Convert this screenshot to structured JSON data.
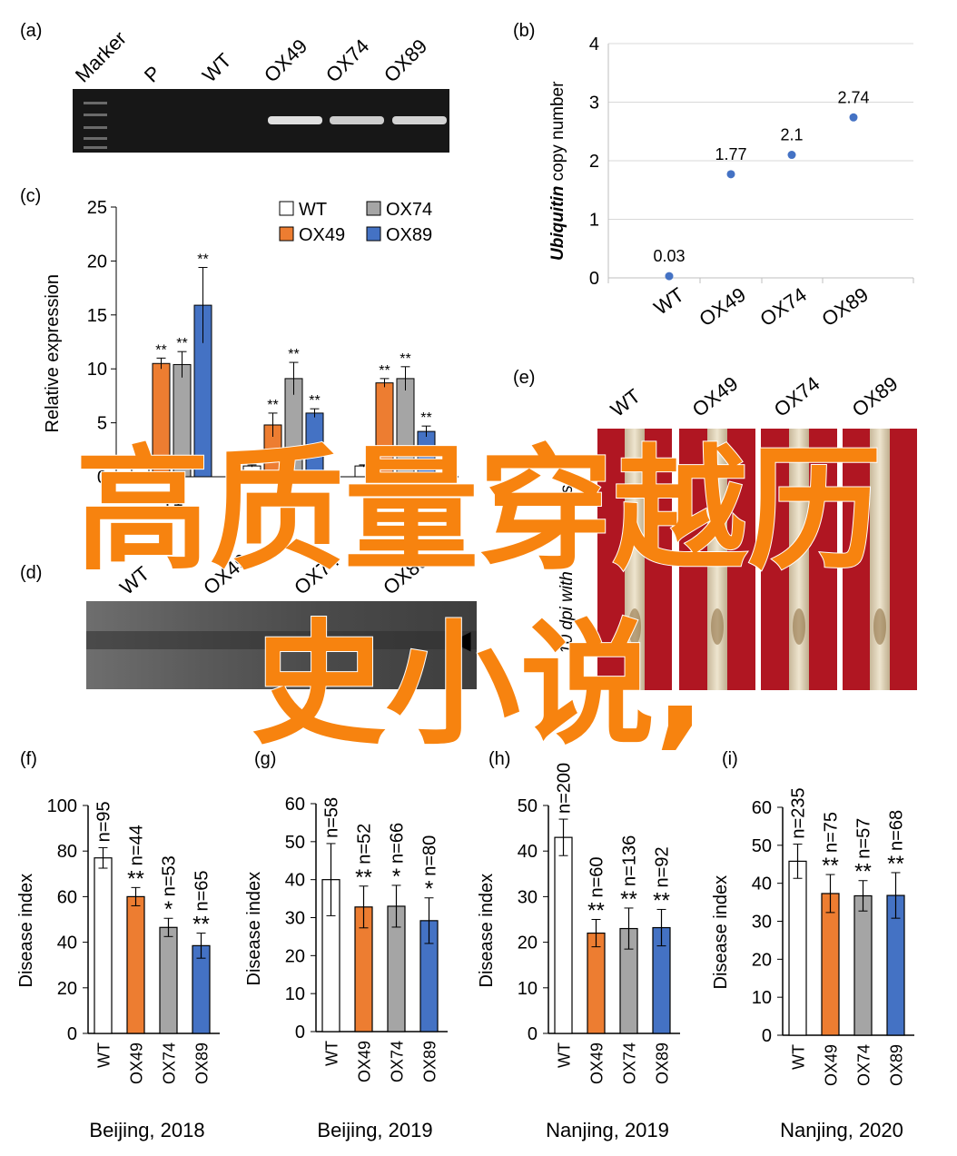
{
  "panels": {
    "a": {
      "label": "(a)",
      "lanes": [
        "Marker",
        "P",
        "WT",
        "OX49",
        "OX74",
        "OX89"
      ],
      "band_intensity": [
        null,
        1.0,
        0.0,
        0.75,
        0.6,
        0.65
      ]
    },
    "b": {
      "label": "(b)",
      "ylabel_italic": "Ubiquitin",
      "ylabel_rest": " copy number",
      "yticks": [
        "0",
        "1",
        "2",
        "3",
        "4"
      ],
      "point_labels": [
        "0.03",
        "1.77",
        "2.1",
        "2.74"
      ],
      "color": "#4472c4"
    },
    "c": {
      "label": "(c)",
      "ylabel": "Relative expression",
      "yticks": [
        "0",
        "5",
        "10",
        "15",
        "20",
        "25"
      ],
      "groups": [
        "T1",
        "T2",
        "T3"
      ],
      "legend": [
        "WT",
        "OX74",
        "OX49",
        "OX89"
      ],
      "sig": "**"
    },
    "d": {
      "label": "(d)",
      "lanes": [
        "WT",
        "OX49",
        "OX74",
        "OX89"
      ],
      "arrow": "◀"
    },
    "e": {
      "label": "(e)",
      "lanes": [
        "WT",
        "OX49",
        "OX74",
        "OX89"
      ],
      "side_text": "10 dpi with C. cerealis"
    },
    "disease": [
      {
        "label": "(f)",
        "caption": "Beijing, 2018",
        "yticks": [
          "0",
          "20",
          "40",
          "60",
          "80",
          "100"
        ],
        "n": [
          "n=95",
          "n=44",
          "n=53",
          "n=65"
        ],
        "sig": [
          "",
          "**",
          "*",
          "**"
        ]
      },
      {
        "label": "(g)",
        "caption": "Beijing, 2019",
        "yticks": [
          "0",
          "10",
          "20",
          "30",
          "40",
          "50",
          "60"
        ],
        "n": [
          "n=58",
          "n=52",
          "n=66",
          "n=80"
        ],
        "sig": [
          "",
          "**",
          "*",
          "*"
        ]
      },
      {
        "label": "(h)",
        "caption": "Nanjing, 2019",
        "yticks": [
          "0",
          "10",
          "20",
          "30",
          "40",
          "50"
        ],
        "n": [
          "n=200",
          "n=60",
          "n=136",
          "n=92"
        ],
        "sig": [
          "",
          "**",
          "**",
          "**"
        ]
      },
      {
        "label": "(i)",
        "caption": "Nanjing, 2020",
        "yticks": [
          "0",
          "10",
          "20",
          "30",
          "40",
          "50",
          "60"
        ],
        "n": [
          "n=235",
          "n=75",
          "n=57",
          "n=68"
        ],
        "sig": [
          "",
          "**",
          "**",
          "**"
        ]
      }
    ],
    "disease_ylabel": "Disease index",
    "disease_categories": [
      "WT",
      "OX49",
      "OX74",
      "OX89"
    ]
  },
  "colors": {
    "WT": "#ffffff",
    "OX49": "#ed7d31",
    "OX74": "#a5a5a5",
    "OX89": "#4472c4"
  },
  "overlay": {
    "line1": "高质量穿越历",
    "line2": "史小说,"
  },
  "chart_data": [
    {
      "type": "scatter",
      "panel": "b",
      "categories": [
        "WT",
        "OX49",
        "OX74",
        "OX89"
      ],
      "values": [
        0.03,
        1.77,
        2.1,
        2.74
      ],
      "ylabel": "Ubiquitin copy number",
      "ylim": [
        0,
        4
      ],
      "grid": true
    },
    {
      "type": "bar",
      "panel": "c",
      "categories": [
        "T1",
        "T2",
        "T3"
      ],
      "series": [
        {
          "name": "WT",
          "values": [
            1.0,
            1.0,
            1.0
          ],
          "errors": [
            0.1,
            0.1,
            0.1
          ]
        },
        {
          "name": "OX49",
          "values": [
            10.5,
            4.8,
            8.7
          ],
          "errors": [
            0.5,
            1.1,
            0.4
          ]
        },
        {
          "name": "OX74",
          "values": [
            10.4,
            9.1,
            9.1
          ],
          "errors": [
            1.2,
            1.5,
            1.1
          ]
        },
        {
          "name": "OX89",
          "values": [
            15.9,
            5.9,
            4.2
          ],
          "errors": [
            3.5,
            0.4,
            0.5
          ]
        }
      ],
      "ylabel": "Relative expression",
      "ylim": [
        0,
        25
      ],
      "legend": "top-right"
    },
    {
      "type": "bar",
      "panel": "f",
      "categories": [
        "WT",
        "OX49",
        "OX74",
        "OX89"
      ],
      "values": [
        77,
        60,
        46.5,
        38.5
      ],
      "errors": [
        4.5,
        4,
        4,
        5.5
      ],
      "ylabel": "Disease index",
      "xlabel": "Beijing, 2018",
      "ylim": [
        0,
        100
      ]
    },
    {
      "type": "bar",
      "panel": "g",
      "categories": [
        "WT",
        "OX49",
        "OX74",
        "OX89"
      ],
      "values": [
        40,
        32.8,
        33,
        29.2
      ],
      "errors": [
        9.5,
        5.5,
        5.5,
        6
      ],
      "ylabel": "Disease index",
      "xlabel": "Beijing, 2019",
      "ylim": [
        0,
        60
      ]
    },
    {
      "type": "bar",
      "panel": "h",
      "categories": [
        "WT",
        "OX49",
        "OX74",
        "OX89"
      ],
      "values": [
        43,
        22,
        23,
        23.2
      ],
      "errors": [
        4,
        3,
        4.5,
        4
      ],
      "ylabel": "Disease index",
      "xlabel": "Nanjing, 2019",
      "ylim": [
        0,
        50
      ]
    },
    {
      "type": "bar",
      "panel": "i",
      "categories": [
        "WT",
        "OX49",
        "OX74",
        "OX89"
      ],
      "values": [
        45.8,
        37.3,
        36.7,
        36.8
      ],
      "errors": [
        4.5,
        5,
        4,
        6
      ],
      "ylabel": "Disease index",
      "xlabel": "Nanjing, 2020",
      "ylim": [
        0,
        60
      ]
    }
  ]
}
